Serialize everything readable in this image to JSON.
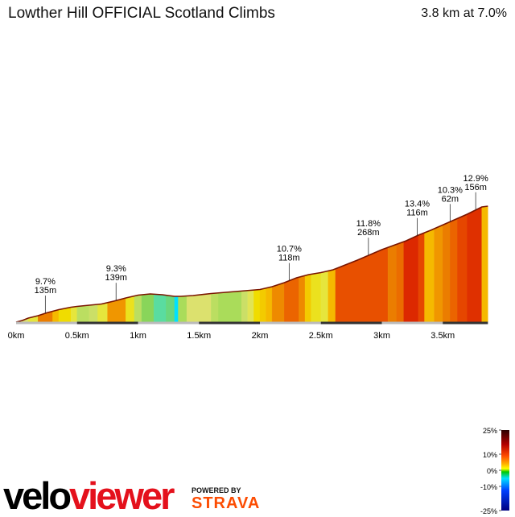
{
  "header": {
    "title": "Lowther Hill OFFICIAL Scotland Climbs",
    "summary": "3.8 km at 7.0%"
  },
  "branding": {
    "logo_part1": "velo",
    "logo_part2": "viewer",
    "powered_by": "POWERED BY",
    "strava": "STRAVA"
  },
  "legend": {
    "ticks": [
      "25%",
      "10%",
      "0%",
      "-10%",
      "-25%"
    ],
    "tick_values": [
      25,
      10,
      0,
      -10,
      -25
    ]
  },
  "chart_data": {
    "type": "area",
    "xlabel": "",
    "ylabel": "",
    "xlim": [
      0,
      3.87
    ],
    "x_ticks": [
      0,
      0.5,
      1,
      1.5,
      2,
      2.5,
      3,
      3.5
    ],
    "x_tick_labels": [
      "0km",
      "0.5km",
      "1km",
      "1.5km",
      "2km",
      "2.5km",
      "3km",
      "3.5km"
    ],
    "x": [
      0,
      0.05,
      0.1,
      0.18,
      0.25,
      0.3,
      0.35,
      0.4,
      0.45,
      0.5,
      0.6,
      0.7,
      0.8,
      0.9,
      1.0,
      1.1,
      1.2,
      1.3,
      1.35,
      1.45,
      1.6,
      1.8,
      2.0,
      2.1,
      2.2,
      2.3,
      2.4,
      2.5,
      2.6,
      2.8,
      3.0,
      3.2,
      3.3,
      3.4,
      3.55,
      3.7,
      3.82,
      3.87
    ],
    "elevation": [
      0,
      2,
      5,
      8,
      11.5,
      13.5,
      15.5,
      17,
      18.5,
      19.5,
      21,
      22.5,
      26,
      30,
      33.5,
      35,
      34,
      32,
      32,
      33,
      35.5,
      38,
      40.5,
      44,
      49,
      55,
      59,
      61.5,
      65,
      77,
      90,
      101,
      108,
      114,
      124,
      134,
      143,
      144
    ],
    "segments": [
      {
        "start": 0.0,
        "end": 0.1,
        "grade": 3
      },
      {
        "start": 0.1,
        "end": 0.18,
        "grade": 4
      },
      {
        "start": 0.18,
        "end": 0.3,
        "grade": 8
      },
      {
        "start": 0.3,
        "end": 0.35,
        "grade": 6
      },
      {
        "start": 0.35,
        "end": 0.45,
        "grade": 5
      },
      {
        "start": 0.45,
        "end": 0.5,
        "grade": 4
      },
      {
        "start": 0.5,
        "end": 0.6,
        "grade": 2
      },
      {
        "start": 0.6,
        "end": 0.67,
        "grade": 2.5
      },
      {
        "start": 0.67,
        "end": 0.75,
        "grade": 4
      },
      {
        "start": 0.75,
        "end": 0.9,
        "grade": 7
      },
      {
        "start": 0.9,
        "end": 0.97,
        "grade": 4.5
      },
      {
        "start": 0.97,
        "end": 1.03,
        "grade": 2
      },
      {
        "start": 1.03,
        "end": 1.13,
        "grade": 0.5
      },
      {
        "start": 1.13,
        "end": 1.23,
        "grade": -1
      },
      {
        "start": 1.23,
        "end": 1.3,
        "grade": -0.5
      },
      {
        "start": 1.3,
        "end": 1.33,
        "grade": -4
      },
      {
        "start": 1.33,
        "end": 1.4,
        "grade": 1.5
      },
      {
        "start": 1.4,
        "end": 1.6,
        "grade": 3
      },
      {
        "start": 1.6,
        "end": 1.66,
        "grade": 2
      },
      {
        "start": 1.66,
        "end": 1.85,
        "grade": 1.5
      },
      {
        "start": 1.85,
        "end": 1.9,
        "grade": 2.5
      },
      {
        "start": 1.9,
        "end": 1.95,
        "grade": 3.5
      },
      {
        "start": 1.95,
        "end": 2.0,
        "grade": 5
      },
      {
        "start": 2.0,
        "end": 2.05,
        "grade": 5.5
      },
      {
        "start": 2.05,
        "end": 2.1,
        "grade": 6
      },
      {
        "start": 2.1,
        "end": 2.2,
        "grade": 7.5
      },
      {
        "start": 2.2,
        "end": 2.32,
        "grade": 9.5
      },
      {
        "start": 2.32,
        "end": 2.37,
        "grade": 7.5
      },
      {
        "start": 2.37,
        "end": 2.42,
        "grade": 5.5
      },
      {
        "start": 2.42,
        "end": 2.5,
        "grade": 4.5
      },
      {
        "start": 2.5,
        "end": 2.56,
        "grade": 4
      },
      {
        "start": 2.56,
        "end": 2.62,
        "grade": 6
      },
      {
        "start": 2.62,
        "end": 3.05,
        "grade": 10.5
      },
      {
        "start": 3.05,
        "end": 3.12,
        "grade": 8
      },
      {
        "start": 3.12,
        "end": 3.18,
        "grade": 9
      },
      {
        "start": 3.18,
        "end": 3.3,
        "grade": 13
      },
      {
        "start": 3.3,
        "end": 3.35,
        "grade": 11
      },
      {
        "start": 3.35,
        "end": 3.43,
        "grade": 6
      },
      {
        "start": 3.43,
        "end": 3.5,
        "grade": 7
      },
      {
        "start": 3.5,
        "end": 3.56,
        "grade": 8
      },
      {
        "start": 3.56,
        "end": 3.62,
        "grade": 9.5
      },
      {
        "start": 3.62,
        "end": 3.7,
        "grade": 11
      },
      {
        "start": 3.7,
        "end": 3.82,
        "grade": 12.5
      },
      {
        "start": 3.82,
        "end": 3.87,
        "grade": 6
      }
    ],
    "annotations": [
      {
        "x": 0.24,
        "grade": "9.7%",
        "length": "135m"
      },
      {
        "x": 0.82,
        "grade": "9.3%",
        "length": "139m"
      },
      {
        "x": 2.24,
        "grade": "10.7%",
        "length": "118m"
      },
      {
        "x": 2.89,
        "grade": "11.8%",
        "length": "268m"
      },
      {
        "x": 3.29,
        "grade": "13.4%",
        "length": "116m"
      },
      {
        "x": 3.56,
        "grade": "10.3%",
        "length": "62m"
      },
      {
        "x": 3.77,
        "grade": "12.9%",
        "length": "156m"
      }
    ]
  }
}
